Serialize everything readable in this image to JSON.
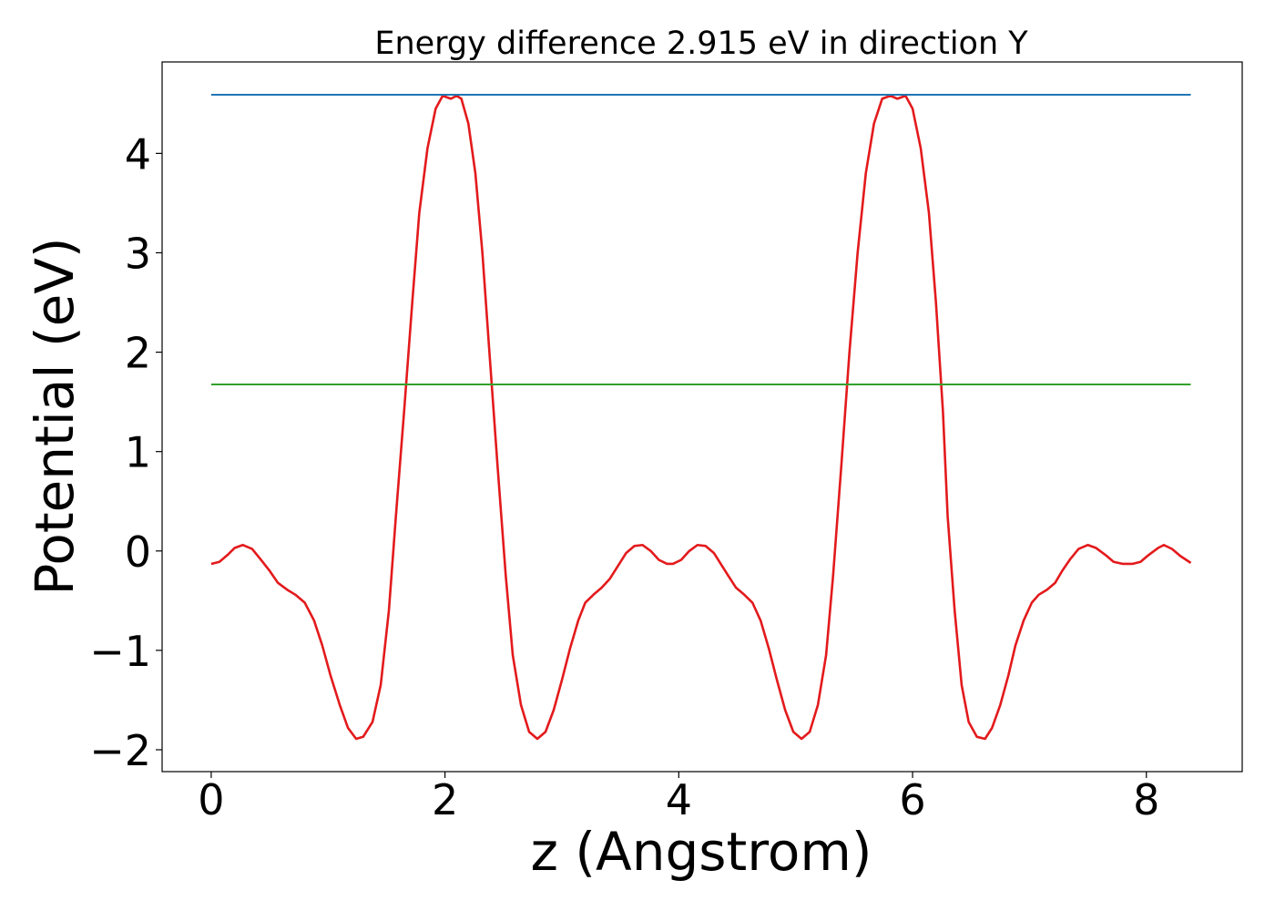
{
  "chart_data": {
    "type": "line",
    "title": "Energy difference 2.915 eV in direction Y",
    "xlabel": "z (Angstrom)",
    "ylabel": "Potential (eV)",
    "xlim": [
      -0.42,
      8.82
    ],
    "ylim": [
      -2.22,
      4.92
    ],
    "xticks": [
      0,
      2,
      4,
      6,
      8
    ],
    "yticks": [
      -2,
      -1,
      0,
      1,
      2,
      3,
      4
    ],
    "xtick_labels": [
      "0",
      "2",
      "4",
      "6",
      "8"
    ],
    "ytick_labels": [
      "−2",
      "−1",
      "0",
      "1",
      "2",
      "3",
      "4"
    ],
    "grid": false,
    "legend": "none",
    "series": [
      {
        "color": "#e31a1c",
        "x": [
          0.0,
          0.07,
          0.14,
          0.2,
          0.27,
          0.35,
          0.42,
          0.5,
          0.57,
          0.65,
          0.72,
          0.8,
          0.88,
          0.95,
          1.02,
          1.1,
          1.17,
          1.24,
          1.3,
          1.38,
          1.45,
          1.52,
          1.58,
          1.65,
          1.72,
          1.78,
          1.85,
          1.92,
          1.98,
          2.05,
          2.1,
          2.14,
          2.2,
          2.26,
          2.32,
          2.38,
          2.45,
          2.52,
          2.58,
          2.65,
          2.72,
          2.79,
          2.86,
          2.93,
          3.0,
          3.07,
          3.14,
          3.2,
          3.27,
          3.34,
          3.41,
          3.48,
          3.55,
          3.62,
          3.69,
          3.76,
          3.83,
          3.9,
          3.95,
          4.02,
          4.09,
          4.16,
          4.23,
          4.3,
          4.37,
          4.44,
          4.49,
          4.56,
          4.63,
          4.7,
          4.77,
          4.84,
          4.91,
          4.98,
          5.05,
          5.12,
          5.19,
          5.26,
          5.32,
          5.39,
          5.46,
          5.53,
          5.6,
          5.67,
          5.74,
          5.81,
          5.87,
          5.94,
          6.0,
          6.07,
          6.14,
          6.2,
          6.26,
          6.3,
          6.36,
          6.42,
          6.48,
          6.55,
          6.62,
          6.68,
          6.75,
          6.82,
          6.88,
          6.95,
          7.02,
          7.08,
          7.15,
          7.22,
          7.28,
          7.35,
          7.42,
          7.5,
          7.57,
          7.65,
          7.72,
          7.8,
          7.88,
          7.95,
          8.02,
          8.1,
          8.15,
          8.22,
          8.29,
          8.38
        ],
        "y": [
          -0.13,
          -0.11,
          -0.04,
          0.03,
          0.06,
          0.02,
          -0.08,
          -0.2,
          -0.32,
          -0.39,
          -0.44,
          -0.52,
          -0.7,
          -0.95,
          -1.25,
          -1.55,
          -1.78,
          -1.89,
          -1.87,
          -1.72,
          -1.35,
          -0.6,
          0.35,
          1.4,
          2.5,
          3.4,
          4.05,
          4.45,
          4.58,
          4.55,
          4.58,
          4.55,
          4.3,
          3.8,
          3.0,
          2.0,
          0.85,
          -0.25,
          -1.05,
          -1.55,
          -1.82,
          -1.89,
          -1.82,
          -1.6,
          -1.3,
          -0.98,
          -0.7,
          -0.52,
          -0.44,
          -0.37,
          -0.28,
          -0.15,
          -0.02,
          0.05,
          0.06,
          0.0,
          -0.09,
          -0.13,
          -0.13,
          -0.09,
          0.0,
          0.06,
          0.05,
          -0.02,
          -0.15,
          -0.28,
          -0.37,
          -0.44,
          -0.52,
          -0.7,
          -0.98,
          -1.3,
          -1.6,
          -1.82,
          -1.89,
          -1.82,
          -1.55,
          -1.05,
          -0.25,
          0.85,
          2.0,
          3.0,
          3.8,
          4.3,
          4.55,
          4.58,
          4.55,
          4.58,
          4.45,
          4.05,
          3.4,
          2.5,
          1.4,
          0.35,
          -0.6,
          -1.35,
          -1.72,
          -1.87,
          -1.89,
          -1.78,
          -1.55,
          -1.25,
          -0.95,
          -0.7,
          -0.52,
          -0.44,
          -0.39,
          -0.32,
          -0.2,
          -0.08,
          0.02,
          0.06,
          0.03,
          -0.04,
          -0.11,
          -0.13,
          -0.13,
          -0.11,
          -0.04,
          0.03,
          0.06,
          0.02,
          -0.05,
          -0.12
        ]
      },
      {
        "color": "#1f77b4",
        "x": [
          0.0,
          8.38
        ],
        "y": [
          4.59,
          4.59
        ]
      },
      {
        "color": "#33a02c",
        "x": [
          0.0,
          8.38
        ],
        "y": [
          1.675,
          1.675
        ]
      }
    ]
  }
}
